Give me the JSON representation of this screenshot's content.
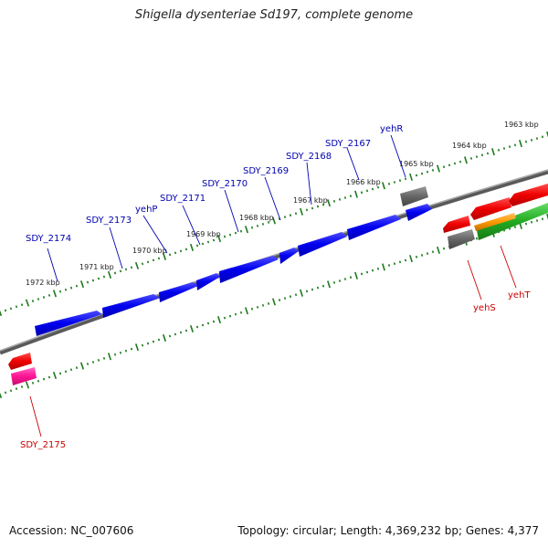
{
  "title": "Shigella dysenteriae Sd197, complete genome",
  "accession": "Accession: NC_007606",
  "topology": "Topology: circular; Length: 4,369,232 bp; Genes: 4,377",
  "colors": {
    "forward_gene": "#0000ee",
    "reverse_gene": "#ee0000",
    "pseudo_gene": "#666666",
    "rna_gene": "#ff1493",
    "green_gene": "#22aa22",
    "orange_gene": "#ff9900",
    "backbone": "#808080",
    "ticks": "#1a7a1a",
    "label_forward": "#0000b0",
    "label_reverse": "#cc0000"
  },
  "kbp_labels": [
    "1972 kbp",
    "1971 kbp",
    "1970 kbp",
    "1969 kbp",
    "1968 kbp",
    "1967 kbp",
    "1966 kbp",
    "1965 kbp",
    "1964 kbp",
    "1963 kbp"
  ],
  "forward_gene_labels": [
    "SDY_2174",
    "SDY_2173",
    "yehP",
    "SDY_2171",
    "SDY_2170",
    "SDY_2169",
    "SDY_2168",
    "SDY_2167",
    "yehR"
  ],
  "reverse_gene_labels": [
    "SDY_2175",
    "yehS",
    "yehT"
  ]
}
